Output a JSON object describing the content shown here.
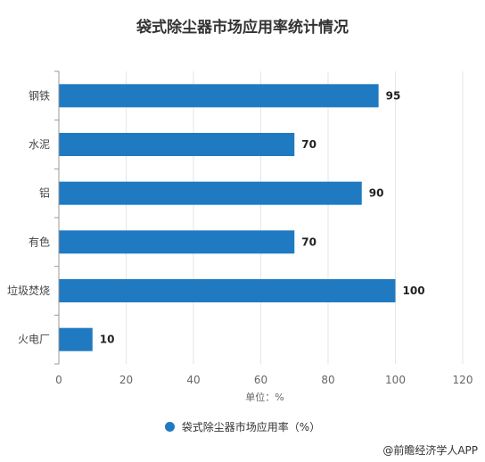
{
  "chart_data": {
    "type": "bar",
    "orientation": "horizontal",
    "title": "袋式除尘器市场应用率统计情况",
    "categories": [
      "钢铁",
      "水泥",
      "铝",
      "有色",
      "垃圾焚烧",
      "火电厂"
    ],
    "series": [
      {
        "name": "袋式除尘器市场应用率（%）",
        "values": [
          95,
          70,
          90,
          70,
          100,
          10
        ],
        "color": "#1f7ac2"
      }
    ],
    "xlabel": "单位：%",
    "xlim": [
      0,
      120
    ],
    "xticks": [
      0,
      20,
      40,
      60,
      80,
      100,
      120
    ],
    "grid": true,
    "legend_position": "bottom-center"
  },
  "source_text": "@前瞻经济学人APP"
}
